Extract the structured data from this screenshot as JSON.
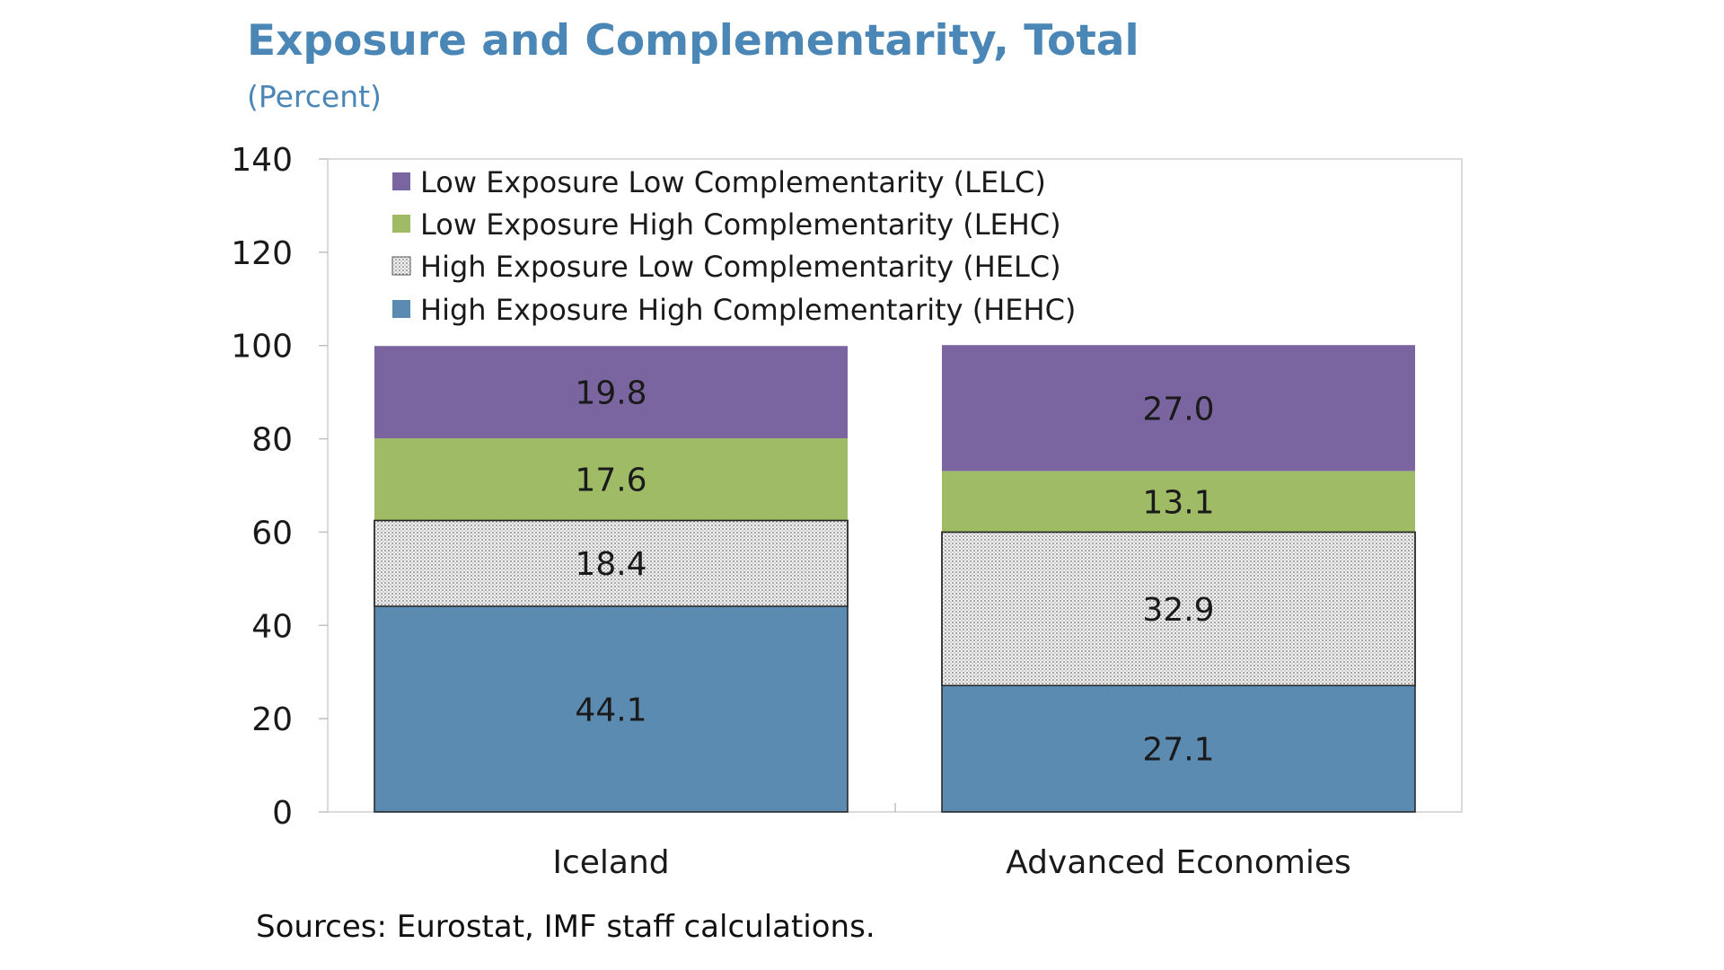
{
  "chart_data": {
    "type": "bar",
    "stacked": true,
    "title": "Exposure and Complementarity, Total",
    "subtitle": "(Percent)",
    "source": "Sources: Eurostat, IMF staff calculations.",
    "categories": [
      "Iceland",
      "Advanced Economies"
    ],
    "ylim": [
      0,
      140
    ],
    "yticks": [
      0,
      20,
      40,
      60,
      80,
      100,
      120,
      140
    ],
    "grid": false,
    "legend_position": "top-left",
    "series": [
      {
        "name": "High Exposure High Complementarity (HEHC)",
        "values": [
          44.1,
          27.1
        ],
        "labels": [
          "44.1",
          "27.1"
        ],
        "color": "#5b8bb0",
        "pattern": "solid"
      },
      {
        "name": "High Exposure Low Complementarity (HELC)",
        "values": [
          18.4,
          32.9
        ],
        "labels": [
          "18.4",
          "32.9"
        ],
        "color": "#d4d4d4",
        "pattern": "dots"
      },
      {
        "name": "Low Exposure High Complementarity (LEHC)",
        "values": [
          17.6,
          13.1
        ],
        "labels": [
          "17.6",
          "13.1"
        ],
        "color": "#9fbb66",
        "pattern": "solid"
      },
      {
        "name": "Low Exposure Low Complementarity (LELC)",
        "values": [
          19.8,
          27.0
        ],
        "labels": [
          "19.8",
          "27.0"
        ],
        "color": "#7b65a0",
        "pattern": "solid"
      }
    ],
    "legend_order": [
      3,
      2,
      1,
      0
    ]
  }
}
